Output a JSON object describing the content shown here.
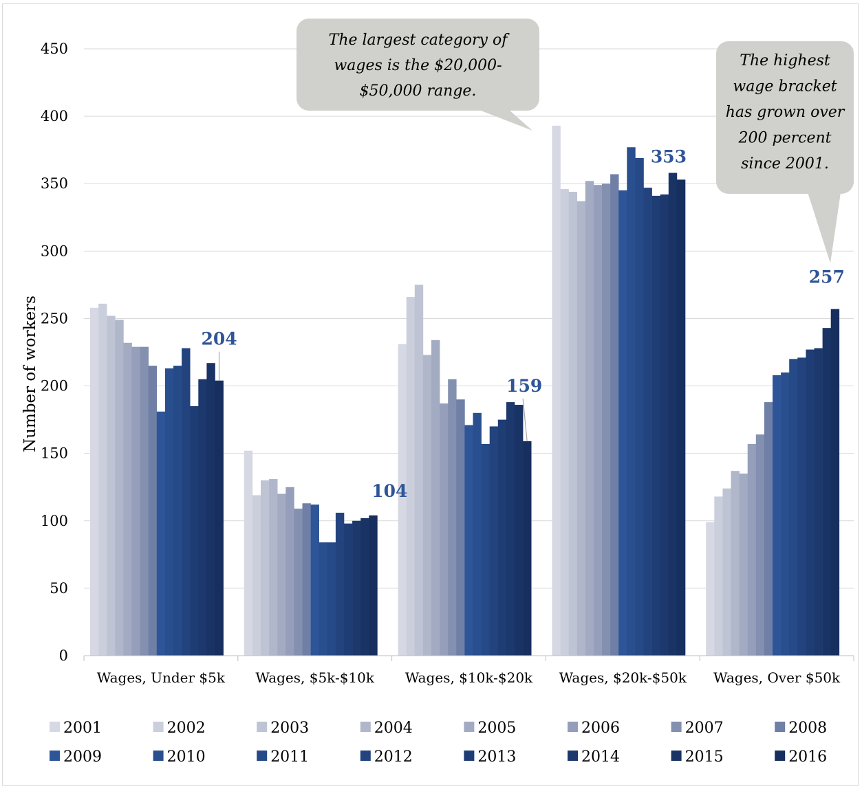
{
  "chart_data": {
    "type": "bar",
    "title": "",
    "xlabel": "",
    "ylabel": "Number of workers",
    "ylim": [
      0,
      450
    ],
    "yticks": [
      "0",
      "50",
      "100",
      "150",
      "200",
      "250",
      "300",
      "350",
      "400",
      "450"
    ],
    "grid": true,
    "legend_position": "bottom",
    "categories": [
      "Wages, Under $5k",
      "Wages, $5k-$10k",
      "Wages, $10k-$20k",
      "Wages, $20k-$50k",
      "Wages, Over $50k"
    ],
    "series": [
      {
        "name": "2001",
        "color": "#d6d9e3",
        "values": [
          258,
          152,
          231,
          393,
          99
        ]
      },
      {
        "name": "2002",
        "color": "#cbcfdc",
        "values": [
          261,
          119,
          266,
          346,
          118
        ]
      },
      {
        "name": "2003",
        "color": "#bec4d4",
        "values": [
          252,
          130,
          275,
          344,
          124
        ]
      },
      {
        "name": "2004",
        "color": "#b1b7cb",
        "values": [
          249,
          131,
          223,
          337,
          137
        ]
      },
      {
        "name": "2005",
        "color": "#a3abc3",
        "values": [
          232,
          120,
          234,
          352,
          135
        ]
      },
      {
        "name": "2006",
        "color": "#959eba",
        "values": [
          229,
          125,
          187,
          349,
          157
        ]
      },
      {
        "name": "2007",
        "color": "#8490b0",
        "values": [
          229,
          109,
          205,
          350,
          164
        ]
      },
      {
        "name": "2008",
        "color": "#6f7fa6",
        "values": [
          215,
          113,
          190,
          357,
          188
        ]
      },
      {
        "name": "2009",
        "color": "#2e5597",
        "values": [
          181,
          112,
          171,
          345,
          208
        ]
      },
      {
        "name": "2010",
        "color": "#2a4f8e",
        "values": [
          213,
          84,
          180,
          377,
          210
        ]
      },
      {
        "name": "2011",
        "color": "#264987",
        "values": [
          215,
          84,
          157,
          369,
          220
        ]
      },
      {
        "name": "2012",
        "color": "#22437e",
        "values": [
          228,
          106,
          170,
          347,
          221
        ]
      },
      {
        "name": "2013",
        "color": "#1f3d75",
        "values": [
          185,
          98,
          175,
          341,
          227
        ]
      },
      {
        "name": "2014",
        "color": "#1c386d",
        "values": [
          205,
          100,
          188,
          342,
          228
        ]
      },
      {
        "name": "2015",
        "color": "#193365",
        "values": [
          217,
          102,
          186,
          358,
          243
        ]
      },
      {
        "name": "2016",
        "color": "#172f5e",
        "values": [
          204,
          104,
          159,
          353,
          257
        ]
      }
    ],
    "data_labels": [
      {
        "text": "204",
        "category": 0,
        "series": 15
      },
      {
        "text": "104",
        "category": 1,
        "series": 15
      },
      {
        "text": "159",
        "category": 2,
        "series": 15
      },
      {
        "text": "353",
        "category": 3,
        "series": 15
      },
      {
        "text": "257",
        "category": 4,
        "series": 15
      }
    ],
    "annotations": [
      {
        "lines": [
          "The largest category of",
          "wages is the $20,000-",
          "$50,000 range."
        ]
      },
      {
        "lines": [
          "The highest",
          "wage bracket",
          "has grown over",
          "200 percent",
          "since 2001."
        ]
      }
    ]
  }
}
